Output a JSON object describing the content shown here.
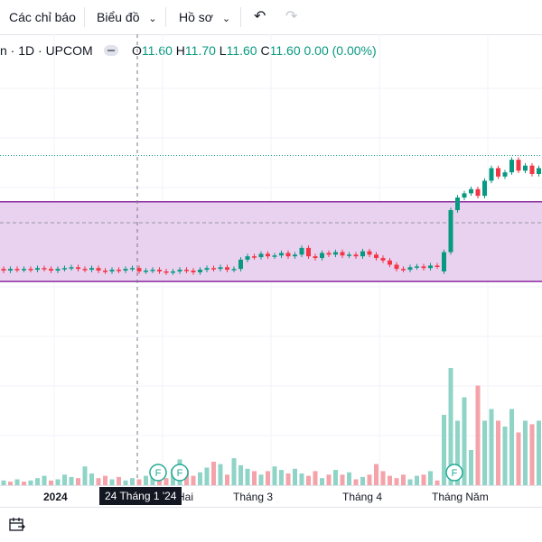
{
  "toolbar": {
    "indicators_label": "Các chỉ báo",
    "chart_type_label": "Biểu đồ",
    "profile_label": "Hồ sơ"
  },
  "legend": {
    "symbol_suffix": "n · 1D · UPCOM",
    "open_key": "O",
    "open_val": "11.60",
    "high_key": "H",
    "high_val": "11.70",
    "low_key": "L",
    "low_val": "11.60",
    "close_key": "C",
    "close_val": "11.60",
    "change": "0.00 (0.00%)"
  },
  "xaxis": {
    "labels": [
      "2024",
      "Hai",
      "Tháng 3",
      "Tháng 4",
      "Tháng Năm"
    ],
    "crosshair_label": "24 Tháng 1 '24"
  },
  "colors": {
    "up": "#089981",
    "down": "#f23645",
    "volume_up": "#8fd4c7",
    "volume_down": "#f5a3aa",
    "zone_fill": "#e9d1f0",
    "zone_border": "#8a2c9e"
  },
  "chart_data": {
    "type": "candlestick",
    "price_range": [
      10.3,
      13.2
    ],
    "zone": [
      10.9,
      11.85
    ],
    "dashed_level": 11.6,
    "dotted_level": 12.4,
    "candles": [
      {
        "o": 11.05,
        "c": 11.03
      },
      {
        "o": 11.03,
        "c": 11.05
      },
      {
        "o": 11.05,
        "c": 11.04
      },
      {
        "o": 11.04,
        "c": 11.05
      },
      {
        "o": 11.05,
        "c": 11.04
      },
      {
        "o": 11.04,
        "c": 11.06
      },
      {
        "o": 11.06,
        "c": 11.05
      },
      {
        "o": 11.05,
        "c": 11.03
      },
      {
        "o": 11.03,
        "c": 11.05
      },
      {
        "o": 11.05,
        "c": 11.06
      },
      {
        "o": 11.06,
        "c": 11.07
      },
      {
        "o": 11.07,
        "c": 11.05
      },
      {
        "o": 11.05,
        "c": 11.04
      },
      {
        "o": 11.04,
        "c": 11.06
      },
      {
        "o": 11.06,
        "c": 11.03
      },
      {
        "o": 11.03,
        "c": 11.02
      },
      {
        "o": 11.02,
        "c": 11.04
      },
      {
        "o": 11.04,
        "c": 11.03
      },
      {
        "o": 11.03,
        "c": 11.05
      },
      {
        "o": 11.05,
        "c": 11.06
      },
      {
        "o": 11.06,
        "c": 11.02
      },
      {
        "o": 11.02,
        "c": 11.03
      },
      {
        "o": 11.03,
        "c": 11.04
      },
      {
        "o": 11.04,
        "c": 11.02
      },
      {
        "o": 11.02,
        "c": 11.01
      },
      {
        "o": 11.01,
        "c": 11.02
      },
      {
        "o": 11.02,
        "c": 11.04
      },
      {
        "o": 11.04,
        "c": 11.03
      },
      {
        "o": 11.03,
        "c": 11.01
      },
      {
        "o": 11.01,
        "c": 11.04
      },
      {
        "o": 11.04,
        "c": 11.06
      },
      {
        "o": 11.06,
        "c": 11.05
      },
      {
        "o": 11.05,
        "c": 11.07
      },
      {
        "o": 11.07,
        "c": 11.04
      },
      {
        "o": 11.04,
        "c": 11.05
      },
      {
        "o": 11.05,
        "c": 11.16
      },
      {
        "o": 11.16,
        "c": 11.2
      },
      {
        "o": 11.2,
        "c": 11.19
      },
      {
        "o": 11.19,
        "c": 11.23
      },
      {
        "o": 11.23,
        "c": 11.2
      },
      {
        "o": 11.2,
        "c": 11.21
      },
      {
        "o": 11.21,
        "c": 11.24
      },
      {
        "o": 11.24,
        "c": 11.2
      },
      {
        "o": 11.2,
        "c": 11.22
      },
      {
        "o": 11.22,
        "c": 11.3
      },
      {
        "o": 11.3,
        "c": 11.2
      },
      {
        "o": 11.2,
        "c": 11.18
      },
      {
        "o": 11.18,
        "c": 11.24
      },
      {
        "o": 11.24,
        "c": 11.22
      },
      {
        "o": 11.22,
        "c": 11.25
      },
      {
        "o": 11.25,
        "c": 11.21
      },
      {
        "o": 11.21,
        "c": 11.22
      },
      {
        "o": 11.22,
        "c": 11.2
      },
      {
        "o": 11.2,
        "c": 11.26
      },
      {
        "o": 11.26,
        "c": 11.22
      },
      {
        "o": 11.22,
        "c": 11.18
      },
      {
        "o": 11.18,
        "c": 11.15
      },
      {
        "o": 11.15,
        "c": 11.1
      },
      {
        "o": 11.1,
        "c": 11.05
      },
      {
        "o": 11.05,
        "c": 11.04
      },
      {
        "o": 11.04,
        "c": 11.07
      },
      {
        "o": 11.07,
        "c": 11.08
      },
      {
        "o": 11.08,
        "c": 11.06
      },
      {
        "o": 11.06,
        "c": 11.09
      },
      {
        "o": 11.09,
        "c": 11.08
      },
      {
        "o": 11.02,
        "c": 11.25
      },
      {
        "o": 11.25,
        "c": 11.75
      },
      {
        "o": 11.75,
        "c": 11.9
      },
      {
        "o": 11.9,
        "c": 11.95
      },
      {
        "o": 11.95,
        "c": 12.0
      },
      {
        "o": 12.0,
        "c": 11.92
      },
      {
        "o": 11.92,
        "c": 12.1
      },
      {
        "o": 12.1,
        "c": 12.25
      },
      {
        "o": 12.25,
        "c": 12.15
      },
      {
        "o": 12.15,
        "c": 12.2
      },
      {
        "o": 12.2,
        "c": 12.35
      },
      {
        "o": 12.35,
        "c": 12.22
      },
      {
        "o": 12.22,
        "c": 12.28
      },
      {
        "o": 12.28,
        "c": 12.18
      },
      {
        "o": 12.18,
        "c": 12.25
      }
    ],
    "volume": [
      4,
      3,
      5,
      3,
      4,
      6,
      8,
      4,
      5,
      9,
      7,
      6,
      16,
      10,
      6,
      8,
      5,
      7,
      4,
      6,
      5,
      8,
      9,
      10,
      6,
      14,
      22,
      13,
      8,
      11,
      15,
      20,
      18,
      9,
      23,
      17,
      14,
      12,
      9,
      12,
      16,
      13,
      10,
      14,
      10,
      8,
      12,
      6,
      9,
      13,
      9,
      11,
      5,
      7,
      9,
      18,
      12,
      8,
      6,
      9,
      5,
      8,
      9,
      12,
      4,
      60,
      100,
      55,
      75,
      30,
      85,
      55,
      65,
      55,
      50,
      65,
      45,
      55,
      52,
      55
    ],
    "volume_up": [
      1,
      0,
      1,
      0,
      1,
      1,
      1,
      0,
      1,
      1,
      1,
      0,
      1,
      1,
      0,
      0,
      1,
      0,
      1,
      1,
      0,
      1,
      1,
      0,
      0,
      1,
      1,
      0,
      0,
      1,
      1,
      0,
      1,
      0,
      1,
      1,
      1,
      0,
      1,
      0,
      1,
      1,
      0,
      1,
      1,
      0,
      0,
      1,
      0,
      1,
      0,
      1,
      0,
      1,
      0,
      0,
      0,
      0,
      0,
      0,
      1,
      1,
      0,
      1,
      0,
      1,
      1,
      1,
      1,
      1,
      0,
      1,
      1,
      0,
      1,
      1,
      0,
      1,
      0,
      1
    ]
  }
}
